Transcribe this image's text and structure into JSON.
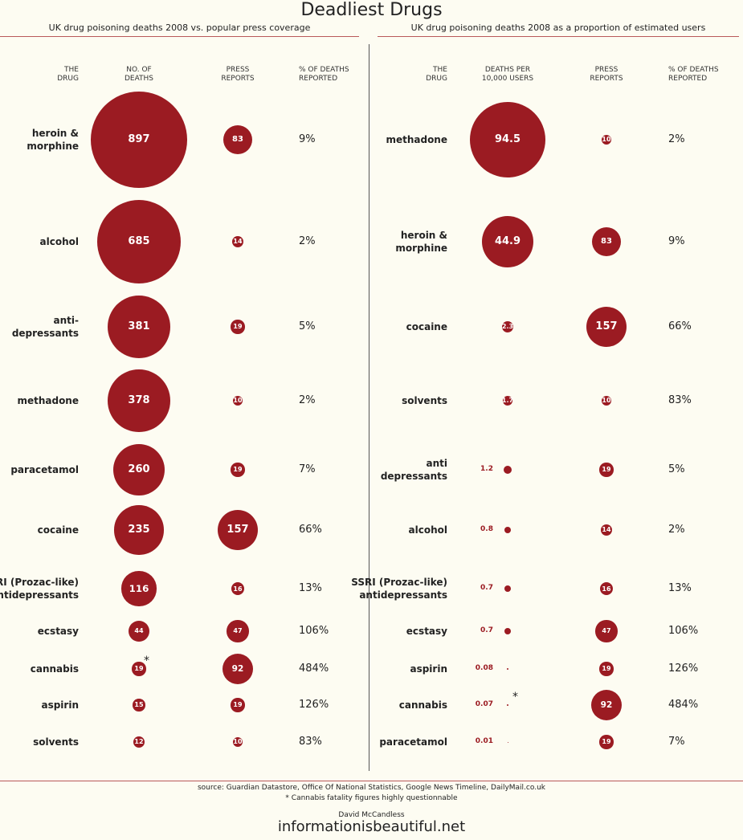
{
  "title": "Deadliest Drugs",
  "chart_data": [
    {
      "type": "bubble",
      "subtitle": "UK drug poisoning deaths 2008 vs. popular press coverage",
      "category_label": "THE\nDRUG",
      "categories": [
        "heroin &\nmorphine",
        "alcohol",
        "anti-\ndepressants",
        "methadone",
        "paracetamol",
        "cocaine",
        "SSRI (Prozac-like)\nantidepressants",
        "ecstasy",
        "cannabis",
        "aspirin",
        "solvents"
      ],
      "series": [
        {
          "name": "NO. OF\nDEATHS",
          "color": "#9b1b22",
          "values": [
            897,
            685,
            381,
            378,
            260,
            235,
            116,
            44,
            19,
            15,
            12
          ]
        },
        {
          "name": "PRESS\nREPORTS",
          "color": "#9b1b22",
          "values": [
            83,
            14,
            19,
            10,
            19,
            157,
            16,
            47,
            92,
            19,
            10
          ]
        },
        {
          "name": "% OF DEATHS\nREPORTED",
          "values": [
            9,
            2,
            5,
            2,
            7,
            66,
            13,
            106,
            484,
            126,
            83
          ],
          "value_labels": [
            "9%",
            "2%",
            "5%",
            "2%",
            "7%",
            "66%",
            "13%",
            "106%",
            "484%",
            "126%",
            "83%"
          ]
        }
      ],
      "annotation": "*"
    },
    {
      "type": "bubble",
      "subtitle": "UK drug poisoning deaths 2008 as a proportion of estimated users",
      "category_label": "THE\nDRUG",
      "categories": [
        "methadone",
        "heroin &\nmorphine",
        "cocaine",
        "solvents",
        "anti\ndepressants",
        "alcohol",
        "SSRI (Prozac-like)\nantidepressants",
        "ecstasy",
        "aspirin",
        "cannabis",
        "paracetamol"
      ],
      "series": [
        {
          "name": "DEATHS PER\n10,000 USERS",
          "color": "#9b1b22",
          "values": [
            94.5,
            44.9,
            2.3,
            1.7,
            1.2,
            0.8,
            0.7,
            0.7,
            0.08,
            0.07,
            0.01
          ]
        },
        {
          "name": "PRESS\nREPORTS",
          "color": "#9b1b22",
          "values": [
            10,
            83,
            157,
            10,
            19,
            14,
            16,
            47,
            19,
            92,
            19
          ]
        },
        {
          "name": "% OF DEATHS\nREPORTED",
          "values": [
            2,
            9,
            66,
            83,
            5,
            2,
            13,
            106,
            126,
            484,
            7
          ],
          "value_labels": [
            "2%",
            "9%",
            "66%",
            "83%",
            "5%",
            "2%",
            "13%",
            "106%",
            "126%",
            "484%",
            "7%"
          ]
        }
      ],
      "annotation": "*"
    }
  ],
  "footer": {
    "source": "source: Guardian Datastore, Office Of National Statistics, Google News Timeline, DailyMail.co.uk",
    "note": "* Cannabis fatality figures highly questionnable",
    "author": "David McCandless",
    "site": "informationisbeautiful.net"
  }
}
